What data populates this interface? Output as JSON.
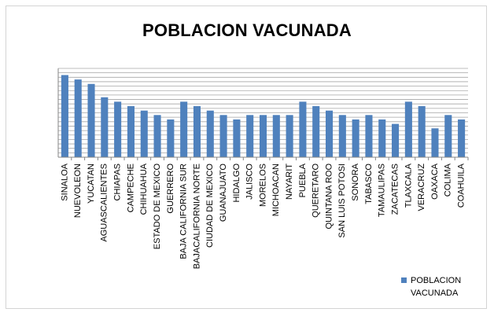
{
  "chart_data": {
    "type": "bar",
    "title": "POBLACION VACUNADA",
    "xlabel": "",
    "ylabel": "",
    "grid": true,
    "legend_position": "bottom-right",
    "series_color": "#4F81BD",
    "categories": [
      "SINALOA",
      "NUEVOLEON",
      "YUCATAN",
      "AGUASCALIENTES",
      "CHIAPAS",
      "CAMPECHE",
      "CHIHUAHUA",
      "ESTADO DE MEXICO",
      "GUERRERO",
      "BAJA CALIFORNIA SUR",
      "BAJACALIFORNIA NORTE",
      "CIUDAD DE MEXICO",
      "GUANAJUATO",
      "HIDALGO",
      "JALISCO",
      "MORELOS",
      "MICHOACAN",
      "NAYARIT",
      "PUEBLA",
      "QUERETARO",
      "QUINTANA ROO",
      "SAN LUIS POTOSI",
      "SONORA",
      "TABASCO",
      "TAMAULIPAS",
      "ZACATECAS",
      "TLAXCALA",
      "VERACRUZ",
      "OAXACA",
      "COLIMA",
      "COAHUILA"
    ],
    "series": [
      {
        "name": "POBLACION VACUNADA",
        "values": [
          18.5,
          17.5,
          16.5,
          13.5,
          12.5,
          11.5,
          10.5,
          9.5,
          8.5,
          12.5,
          11.5,
          10.5,
          9.5,
          8.5,
          9.5,
          9.5,
          9.5,
          9.5,
          12.5,
          11.5,
          10.5,
          9.5,
          8.5,
          9.5,
          8.5,
          7.5,
          12.5,
          11.5,
          6.5,
          9.5,
          8.5
        ]
      }
    ],
    "ylim": [
      0,
      20
    ]
  }
}
